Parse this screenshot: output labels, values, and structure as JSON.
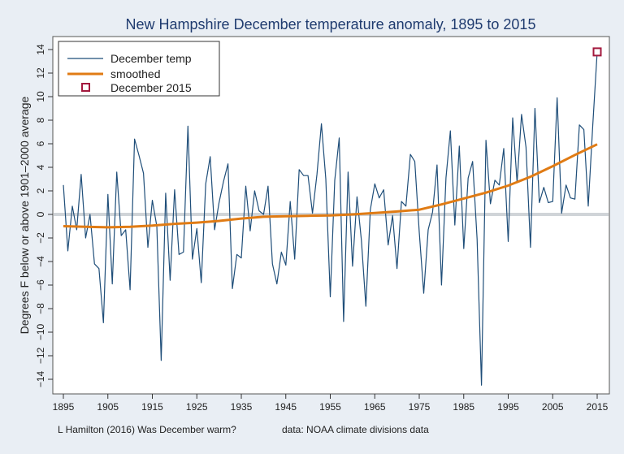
{
  "chart_data": {
    "type": "line",
    "title": "New Hampshire December temperature anomaly, 1895 to 2015",
    "ylabel": "Degrees F below or above 1901–2000 average",
    "xlabel": "",
    "xlim": [
      1895,
      2015
    ],
    "ylim": [
      -15,
      15
    ],
    "x_ticks": [
      1895,
      1905,
      1915,
      1925,
      1935,
      1945,
      1955,
      1965,
      1975,
      1985,
      1995,
      2005,
      2015
    ],
    "y_ticks": [
      -14,
      -12,
      -10,
      -8,
      -6,
      -4,
      -2,
      0,
      2,
      4,
      6,
      8,
      10,
      12,
      14
    ],
    "grid": false,
    "reference_line": 0,
    "legend_position": "top-left",
    "series": [
      {
        "name": "December temp",
        "color": "#1f4e79",
        "x": [
          1895,
          1896,
          1897,
          1898,
          1899,
          1900,
          1901,
          1902,
          1903,
          1904,
          1905,
          1906,
          1907,
          1908,
          1909,
          1910,
          1911,
          1912,
          1913,
          1914,
          1915,
          1916,
          1917,
          1918,
          1919,
          1920,
          1921,
          1922,
          1923,
          1924,
          1925,
          1926,
          1927,
          1928,
          1929,
          1930,
          1931,
          1932,
          1933,
          1934,
          1935,
          1936,
          1937,
          1938,
          1939,
          1940,
          1941,
          1942,
          1943,
          1944,
          1945,
          1946,
          1947,
          1948,
          1949,
          1950,
          1951,
          1952,
          1953,
          1954,
          1955,
          1956,
          1957,
          1958,
          1959,
          1960,
          1961,
          1962,
          1963,
          1964,
          1965,
          1966,
          1967,
          1968,
          1969,
          1970,
          1971,
          1972,
          1973,
          1974,
          1975,
          1976,
          1977,
          1978,
          1979,
          1980,
          1981,
          1982,
          1983,
          1984,
          1985,
          1986,
          1987,
          1988,
          1989,
          1990,
          1991,
          1992,
          1993,
          1994,
          1995,
          1996,
          1997,
          1998,
          1999,
          2000,
          2001,
          2002,
          2003,
          2004,
          2005,
          2006,
          2007,
          2008,
          2009,
          2010,
          2011,
          2012,
          2013,
          2014,
          2015
        ],
        "values": [
          2.5,
          -3.1,
          0.7,
          -1.3,
          3.4,
          -2.0,
          0.0,
          -4.2,
          -4.6,
          -9.2,
          1.7,
          -5.9,
          3.6,
          -1.8,
          -1.3,
          -6.4,
          6.4,
          5.0,
          3.5,
          -2.8,
          1.2,
          -1.0,
          -12.4,
          1.8,
          -5.6,
          2.1,
          -3.4,
          -3.2,
          7.5,
          -3.8,
          -1.2,
          -5.8,
          2.6,
          4.9,
          -1.3,
          1.0,
          2.8,
          4.3,
          -6.3,
          -3.4,
          -3.7,
          2.4,
          -1.4,
          2.0,
          0.3,
          0.0,
          2.4,
          -4.2,
          -5.9,
          -3.2,
          -4.3,
          1.1,
          -3.8,
          3.8,
          3.3,
          3.3,
          0.1,
          3.4,
          7.7,
          3.0,
          -7.0,
          2.9,
          6.5,
          -9.1,
          3.6,
          -4.4,
          1.5,
          -2.2,
          -7.8,
          0.4,
          2.6,
          1.4,
          2.1,
          -2.6,
          -0.1,
          -4.6,
          1.1,
          0.7,
          5.1,
          4.5,
          -1.5,
          -6.7,
          -1.3,
          0.2,
          4.2,
          -6.0,
          3.1,
          7.1,
          -0.9,
          5.8,
          -2.9,
          3.1,
          4.5,
          -2.1,
          -14.5,
          6.3,
          0.9,
          2.9,
          2.5,
          5.6,
          -2.3,
          8.2,
          2.7,
          8.5,
          5.7,
          -2.8,
          9.0,
          1.0,
          2.3,
          1.0,
          1.1,
          9.9,
          0.1,
          2.5,
          1.4,
          1.3,
          7.6,
          7.2,
          0.7,
          7.5,
          13.8
        ]
      },
      {
        "name": "smoothed",
        "color": "#e07b14",
        "x": [
          1895,
          1900,
          1905,
          1910,
          1915,
          1920,
          1925,
          1930,
          1935,
          1940,
          1945,
          1950,
          1955,
          1960,
          1965,
          1970,
          1975,
          1980,
          1985,
          1990,
          1995,
          2000,
          2005,
          2010,
          2015
        ],
        "values": [
          -1.0,
          -1.05,
          -1.1,
          -1.05,
          -0.95,
          -0.8,
          -0.7,
          -0.55,
          -0.35,
          -0.2,
          -0.15,
          -0.12,
          -0.08,
          0.0,
          0.12,
          0.25,
          0.4,
          0.85,
          1.35,
          1.85,
          2.45,
          3.2,
          4.1,
          5.05,
          5.95
        ]
      },
      {
        "name": "December 2015",
        "color": "#a3193e",
        "x": [
          2015
        ],
        "values": [
          13.8
        ]
      }
    ],
    "footer_left": "L Hamilton (2016) Was December warm?",
    "footer_right": "data: NOAA climate divisions data"
  }
}
